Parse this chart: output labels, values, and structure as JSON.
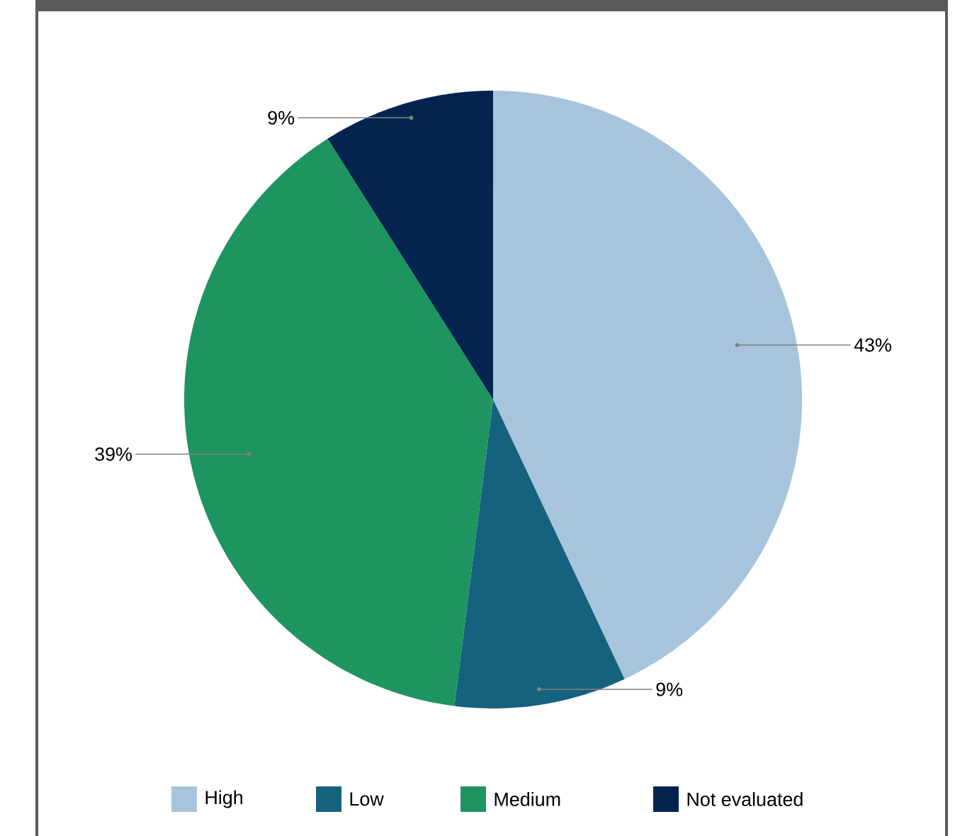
{
  "chart_data": {
    "type": "pie",
    "categories": [
      "High",
      "Low",
      "Medium",
      "Not evaluated"
    ],
    "values": [
      43,
      9,
      39,
      9
    ],
    "value_labels": [
      "43%",
      "9%",
      "39%",
      "9%"
    ],
    "colors": [
      "#a7c4dc",
      "#15627e",
      "#1e9461",
      "#02244f"
    ],
    "legend": "bottom"
  }
}
